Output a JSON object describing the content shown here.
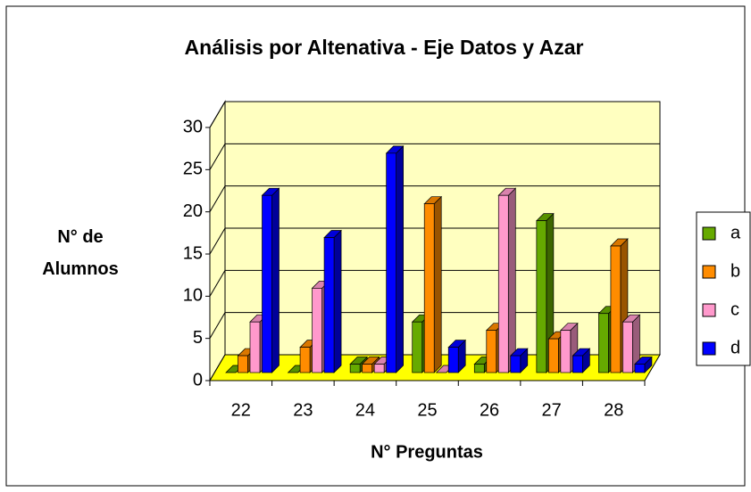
{
  "chart_data": {
    "type": "bar3d",
    "title": "Análisis por Altenativa - Eje Datos y Azar",
    "x_label": "N° Preguntas",
    "y_label": "N° de Alumnos",
    "categories": [
      "22",
      "23",
      "24",
      "25",
      "26",
      "27",
      "28"
    ],
    "series": [
      {
        "name": "a",
        "color": "#66aa00",
        "values": [
          0,
          0,
          1,
          6,
          1,
          18,
          7
        ]
      },
      {
        "name": "b",
        "color": "#ff8c00",
        "values": [
          2,
          3,
          1,
          20,
          5,
          4,
          15
        ]
      },
      {
        "name": "c",
        "color": "#ff99cc",
        "values": [
          6,
          10,
          1,
          0,
          21,
          5,
          6
        ]
      },
      {
        "name": "d",
        "color": "#0000ff",
        "values": [
          21,
          16,
          26,
          3,
          2,
          2,
          1
        ]
      }
    ],
    "ylim": [
      0,
      30
    ],
    "yticks": [
      0,
      5,
      10,
      15,
      20,
      25,
      30
    ],
    "grid": true,
    "legend": "right"
  }
}
